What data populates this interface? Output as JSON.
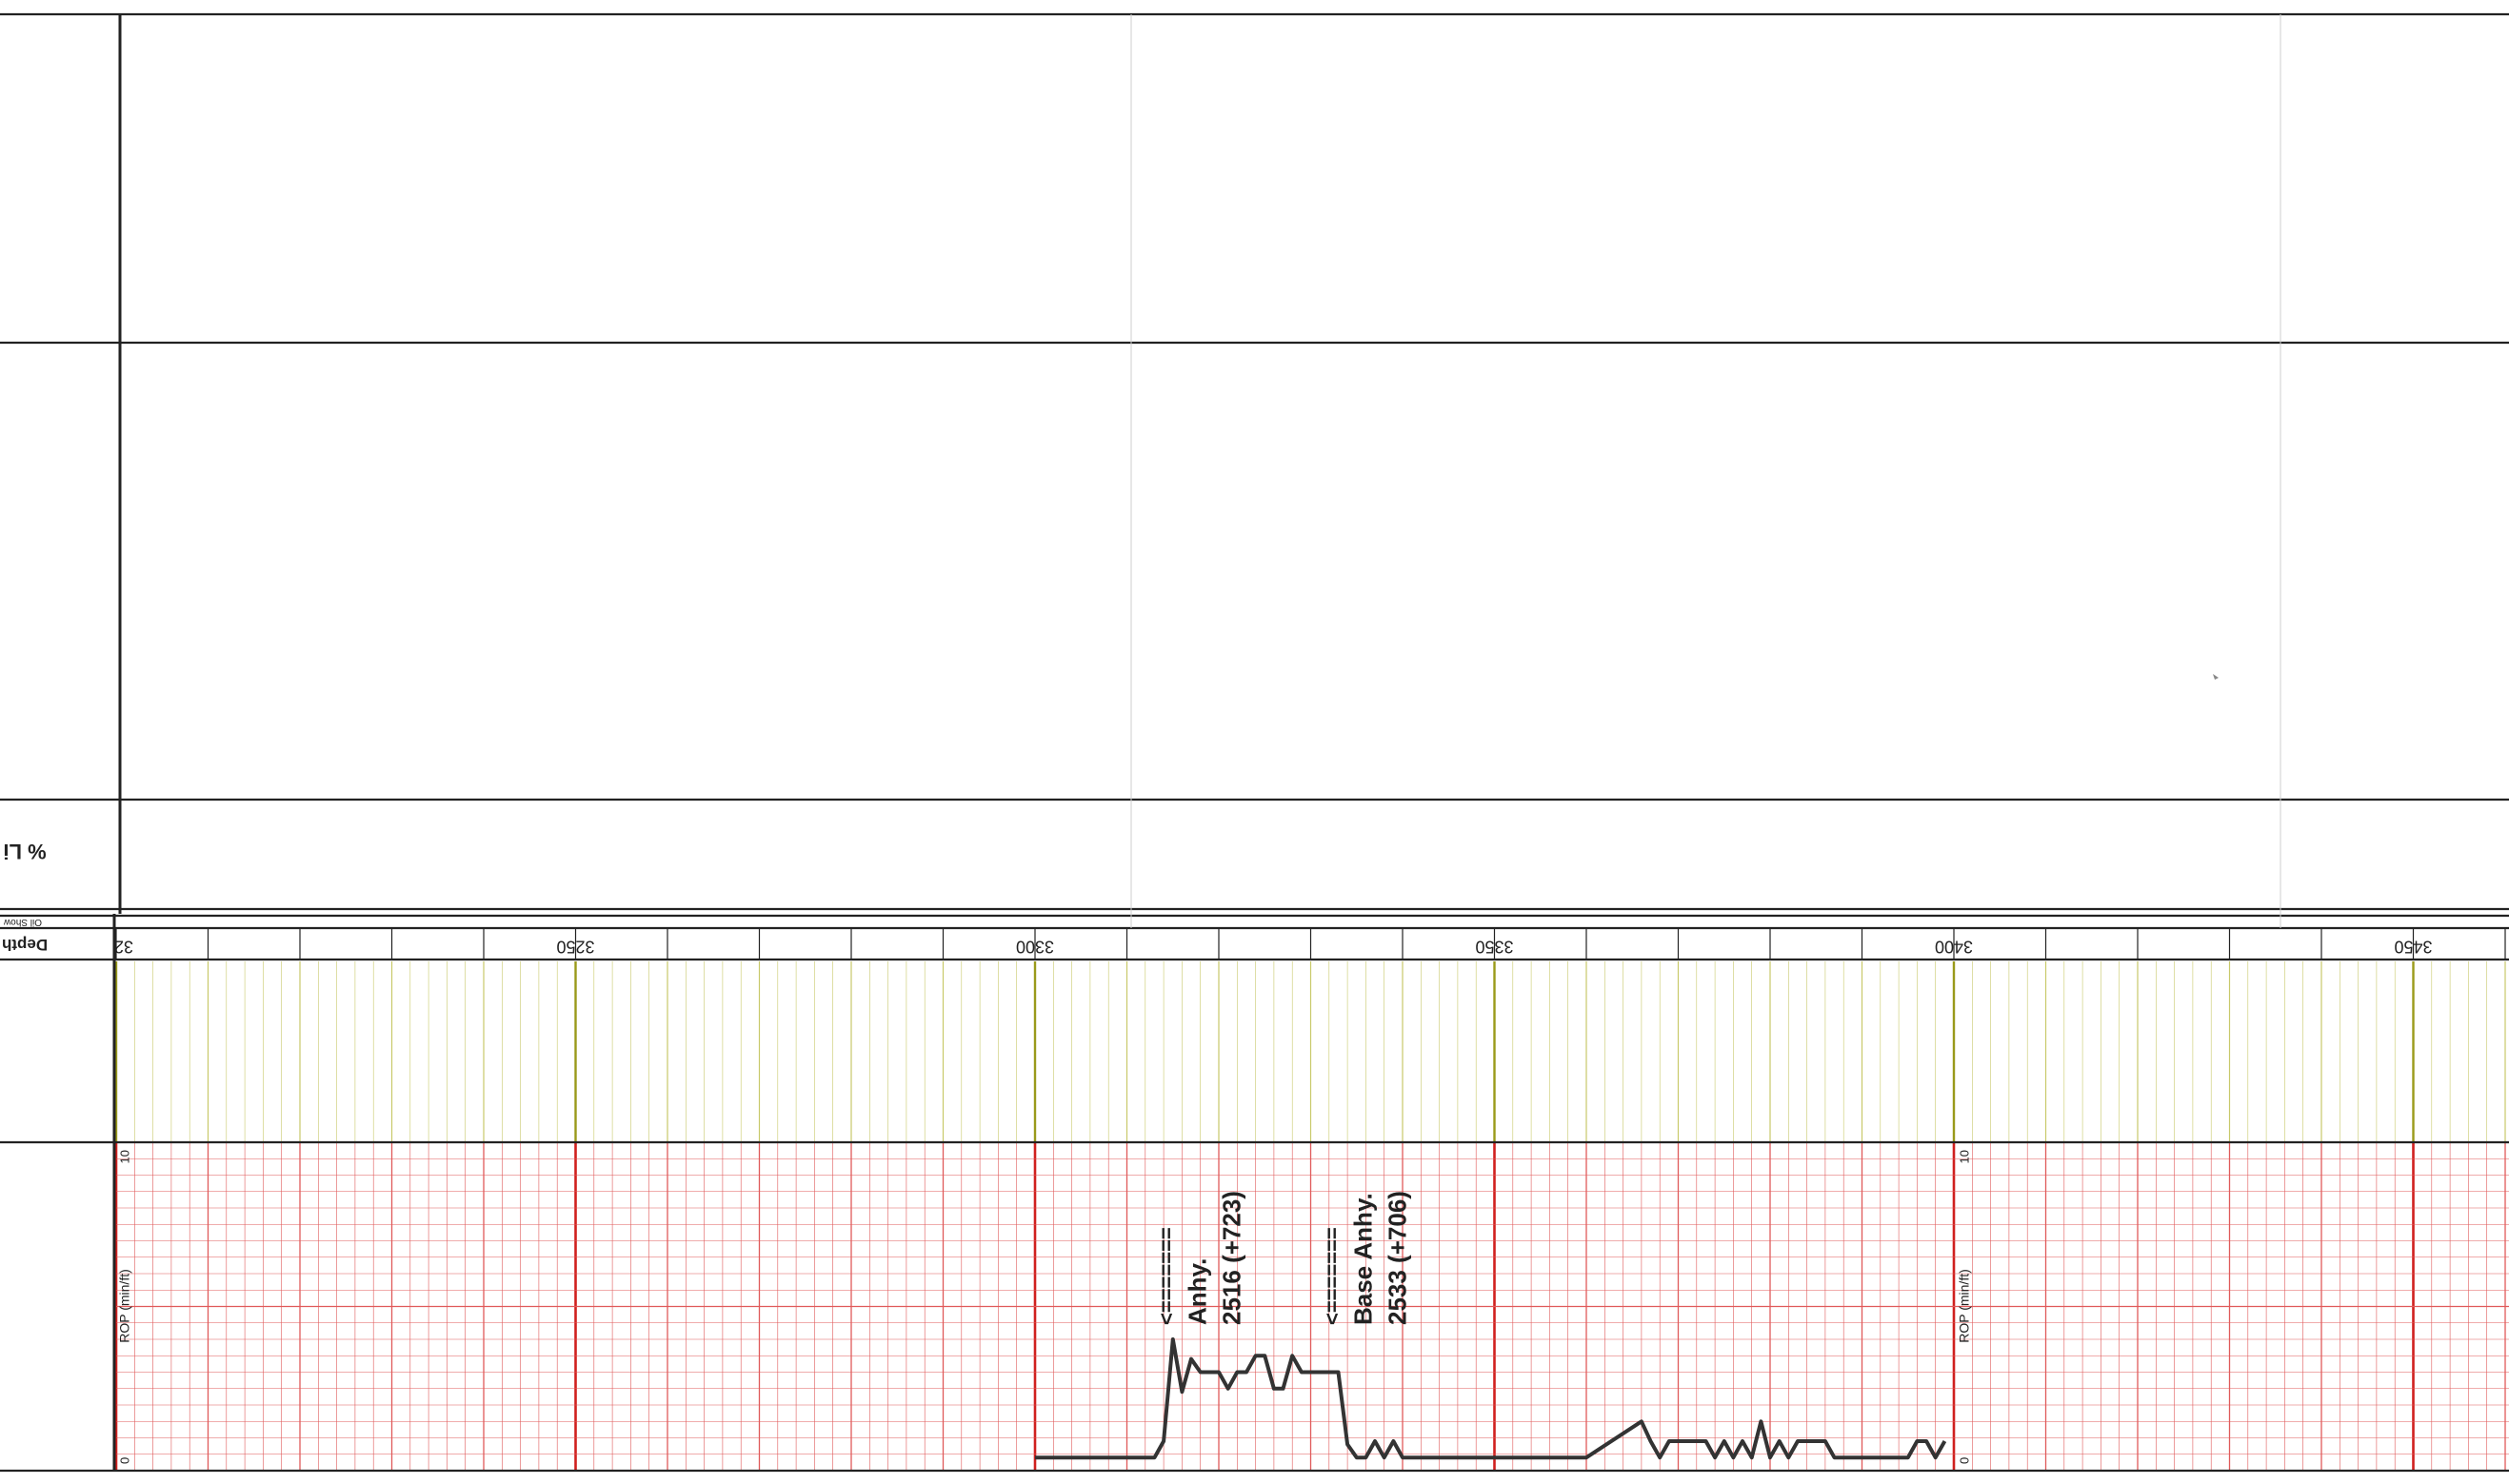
{
  "header": {
    "track_label": "% Li",
    "oil_show_label": "Oil Show",
    "depth_label": "Depth"
  },
  "depth_track": {
    "ticks": [
      "32",
      "3250",
      "3300",
      "3350",
      "3400",
      "3450"
    ]
  },
  "rop_track": {
    "axis_label": "ROP (min/ft)",
    "scale_max": "10",
    "scale_min": "0"
  },
  "annotations": [
    {
      "arrow": "<=======",
      "line1": "Anhy.",
      "line2": "2516 (+723)",
      "depth": 3315
    },
    {
      "arrow": "<=======",
      "line1": "Base Anhy.",
      "line2": "2533 (+706)",
      "depth": 3333
    }
  ],
  "colors": {
    "grid_red": "#e05a5a",
    "grid_red_major": "#d0201e",
    "grid_olive": "#c8c96a",
    "grid_olive_major": "#9a9a1a",
    "border": "#222222",
    "curve": "#333333"
  },
  "chart_data": {
    "type": "line",
    "ylabel": "ROP (min/ft)",
    "ylim": [
      0,
      10
    ],
    "x_direction": "depth increasing to the right",
    "xlim": [
      3200,
      3475
    ],
    "x_ticks": [
      3250,
      3300,
      3350,
      3400,
      3450
    ],
    "series": [
      {
        "x": [
          3300,
          3313,
          3314,
          3315,
          3316,
          3317,
          3318,
          3319,
          3320,
          3321,
          3322,
          3323,
          3324,
          3325,
          3326,
          3327,
          3328,
          3329,
          3330,
          3331,
          3332,
          3333,
          3334,
          3335,
          3336,
          3337,
          3338,
          3339,
          3340,
          3350,
          3360,
          3366,
          3367,
          3368,
          3369,
          3370,
          3371,
          3372,
          3373,
          3374,
          3375,
          3376,
          3377,
          3378,
          3379,
          3380,
          3381,
          3382,
          3383,
          3384,
          3385,
          3386,
          3387,
          3388,
          3392,
          3395,
          3396,
          3397,
          3398,
          3399
        ],
        "values": [
          0.4,
          0.4,
          0.9,
          4.0,
          2.4,
          3.4,
          3.0,
          3.0,
          3.0,
          2.5,
          3.0,
          3.0,
          3.5,
          3.5,
          2.5,
          2.5,
          3.5,
          3.0,
          3.0,
          3.0,
          3.0,
          3.0,
          0.8,
          0.4,
          0.4,
          0.9,
          0.4,
          0.9,
          0.4,
          0.4,
          0.4,
          1.5,
          0.9,
          0.4,
          0.9,
          0.9,
          0.9,
          0.9,
          0.9,
          0.4,
          0.9,
          0.4,
          0.9,
          0.4,
          1.5,
          0.4,
          0.9,
          0.4,
          0.9,
          0.9,
          0.9,
          0.9,
          0.4,
          0.4,
          0.4,
          0.4,
          0.9,
          0.9,
          0.4,
          0.9
        ]
      }
    ]
  }
}
